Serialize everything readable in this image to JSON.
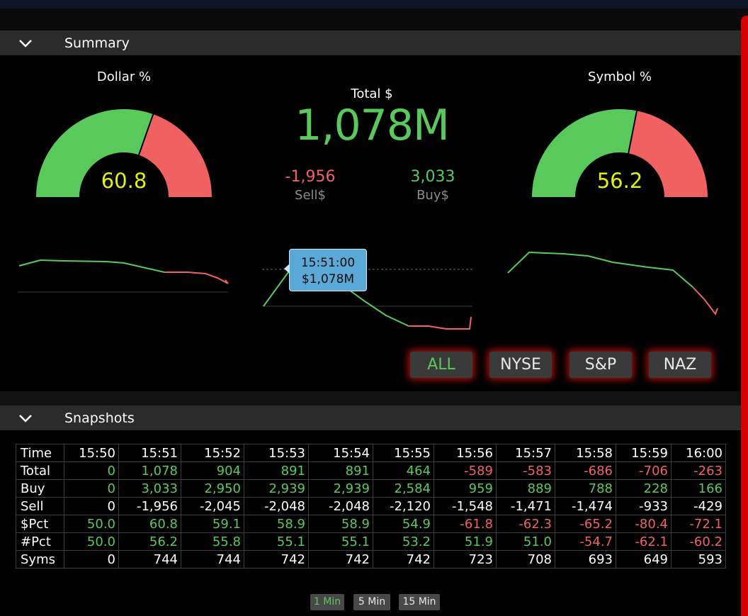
{
  "colors": {
    "positive": "#5ac95c",
    "negative": "#f06262",
    "gauge_value": "#e4f00c",
    "tooltip_bg": "#5aa9d6",
    "button_glow": "#dc1414"
  },
  "summary": {
    "section_label": "Summary",
    "dollar_gauge": {
      "title": "Dollar %",
      "value": "60.8",
      "fraction": 0.608
    },
    "symbol_gauge": {
      "title": "Symbol %",
      "value": "56.2",
      "fraction": 0.562
    },
    "total_label": "Total $",
    "total_value": "1,078M",
    "sell_value": "-1,956",
    "sell_label": "Sell$",
    "buy_value": "3,033",
    "buy_label": "Buy$",
    "tooltip": {
      "time": "15:51:00",
      "value": "$1,078M"
    },
    "exchange_buttons": [
      {
        "label": "ALL",
        "active": true
      },
      {
        "label": "NYSE",
        "active": false
      },
      {
        "label": "S&P",
        "active": false
      },
      {
        "label": "NAZ",
        "active": false
      }
    ]
  },
  "snapshots": {
    "section_label": "Snapshots",
    "columns": [
      "Time",
      "15:50",
      "15:51",
      "15:52",
      "15:53",
      "15:54",
      "15:55",
      "15:56",
      "15:57",
      "15:58",
      "15:59",
      "16:00"
    ],
    "rows": [
      {
        "label": "Total",
        "values": [
          "0",
          "1,078",
          "904",
          "891",
          "891",
          "464",
          "-589",
          "-583",
          "-686",
          "-706",
          "-263"
        ],
        "colors": [
          "pos",
          "pos",
          "pos",
          "pos",
          "pos",
          "pos",
          "neg",
          "neg",
          "neg",
          "neg",
          "neg"
        ]
      },
      {
        "label": "Buy",
        "values": [
          "0",
          "3,033",
          "2,950",
          "2,939",
          "2,939",
          "2,584",
          "959",
          "889",
          "788",
          "228",
          "166"
        ],
        "colors": [
          "pos",
          "pos",
          "pos",
          "pos",
          "pos",
          "pos",
          "pos",
          "pos",
          "pos",
          "pos",
          "pos"
        ]
      },
      {
        "label": "Sell",
        "values": [
          "0",
          "-1,956",
          "-2,045",
          "-2,048",
          "-2,048",
          "-2,120",
          "-1,548",
          "-1,471",
          "-1,474",
          "-933",
          "-429"
        ],
        "colors": [
          "neu",
          "neu",
          "neu",
          "neu",
          "neu",
          "neu",
          "neu",
          "neu",
          "neu",
          "neu",
          "neu"
        ]
      },
      {
        "label": "$Pct",
        "values": [
          "50.0",
          "60.8",
          "59.1",
          "58.9",
          "58.9",
          "54.9",
          "-61.8",
          "-62.3",
          "-65.2",
          "-80.4",
          "-72.1"
        ],
        "colors": [
          "pos",
          "pos",
          "pos",
          "pos",
          "pos",
          "pos",
          "neg",
          "neg",
          "neg",
          "neg",
          "neg"
        ]
      },
      {
        "label": "#Pct",
        "values": [
          "50.0",
          "56.2",
          "55.8",
          "55.1",
          "55.1",
          "53.2",
          "51.9",
          "51.0",
          "-54.7",
          "-62.1",
          "-60.2"
        ],
        "colors": [
          "pos",
          "pos",
          "pos",
          "pos",
          "pos",
          "pos",
          "pos",
          "pos",
          "neg",
          "neg",
          "neg"
        ]
      },
      {
        "label": "Syms",
        "values": [
          "0",
          "744",
          "744",
          "742",
          "742",
          "742",
          "723",
          "708",
          "693",
          "649",
          "593"
        ],
        "colors": [
          "neu",
          "neu",
          "neu",
          "neu",
          "neu",
          "neu",
          "neu",
          "neu",
          "neu",
          "neu",
          "neu"
        ]
      }
    ],
    "interval_buttons": [
      {
        "label": "1 Min",
        "active": true
      },
      {
        "label": "5 Min",
        "active": false
      },
      {
        "label": "15 Min",
        "active": false
      }
    ]
  }
}
